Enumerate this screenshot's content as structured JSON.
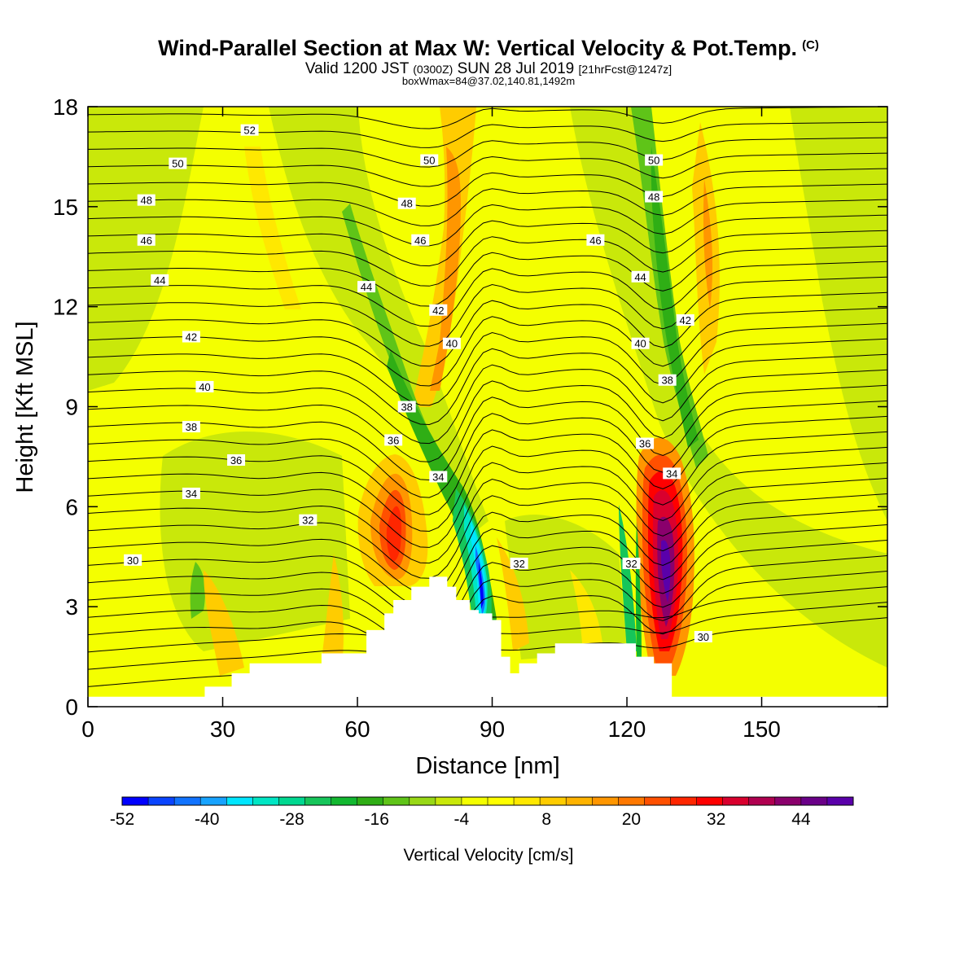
{
  "header": {
    "title": "Wind-Parallel Section at Max W: Vertical Velocity & Pot.Temp.",
    "title_mark": "(C)",
    "subtitle_a": "Valid 1200 JST",
    "subtitle_b": "(0300Z)",
    "subtitle_c": "SUN 28 Jul 2019",
    "subtitle_d": "[21hrFcst@1247z]",
    "subline": "boxWmax=84@37.02,140.81,1492m"
  },
  "chart_data": {
    "type": "contour",
    "xlabel": "Distance [nm]",
    "ylabel": "Height [Kft MSL]",
    "xlim": [
      0,
      178
    ],
    "ylim": [
      0,
      18
    ],
    "x_ticks": [
      0,
      30,
      60,
      90,
      120,
      150
    ],
    "y_ticks": [
      0,
      3,
      6,
      9,
      12,
      15,
      18
    ],
    "terrain": [
      [
        0,
        0.3
      ],
      [
        20,
        0.3
      ],
      [
        26,
        0.6
      ],
      [
        32,
        1
      ],
      [
        36,
        1.3
      ],
      [
        50,
        1.3
      ],
      [
        52,
        1.6
      ],
      [
        58,
        1.6
      ],
      [
        62,
        2.3
      ],
      [
        66,
        2.8
      ],
      [
        68,
        3.2
      ],
      [
        72,
        3.6
      ],
      [
        76,
        3.9
      ],
      [
        80,
        3.6
      ],
      [
        82,
        3.2
      ],
      [
        85,
        2.9
      ],
      [
        87,
        2.8
      ],
      [
        90,
        2.6
      ],
      [
        92,
        1.5
      ],
      [
        94,
        1
      ],
      [
        96,
        1.3
      ],
      [
        100,
        1.6
      ],
      [
        104,
        1.9
      ],
      [
        118,
        1.9
      ],
      [
        122,
        1.5
      ],
      [
        126,
        1.3
      ],
      [
        130,
        0.3
      ],
      [
        134,
        0.3
      ],
      [
        178,
        0.3
      ]
    ],
    "theta_line_labels": [
      {
        "x": 36,
        "y": 17.3,
        "text": "52"
      },
      {
        "x": 20,
        "y": 16.3,
        "text": "50"
      },
      {
        "x": 76,
        "y": 16.4,
        "text": "50"
      },
      {
        "x": 126,
        "y": 16.4,
        "text": "50"
      },
      {
        "x": 13,
        "y": 15.2,
        "text": "48"
      },
      {
        "x": 71,
        "y": 15.1,
        "text": "48"
      },
      {
        "x": 126,
        "y": 15.3,
        "text": "48"
      },
      {
        "x": 13,
        "y": 14.0,
        "text": "46"
      },
      {
        "x": 74,
        "y": 14.0,
        "text": "46"
      },
      {
        "x": 113,
        "y": 14.0,
        "text": "46"
      },
      {
        "x": 16,
        "y": 12.8,
        "text": "44"
      },
      {
        "x": 62,
        "y": 12.6,
        "text": "44"
      },
      {
        "x": 123,
        "y": 12.9,
        "text": "44"
      },
      {
        "x": 78,
        "y": 11.9,
        "text": "42"
      },
      {
        "x": 133,
        "y": 11.6,
        "text": "42"
      },
      {
        "x": 23,
        "y": 11.1,
        "text": "42"
      },
      {
        "x": 81,
        "y": 10.9,
        "text": "40"
      },
      {
        "x": 123,
        "y": 10.9,
        "text": "40"
      },
      {
        "x": 26,
        "y": 9.6,
        "text": "40"
      },
      {
        "x": 129,
        "y": 9.8,
        "text": "38"
      },
      {
        "x": 71,
        "y": 9.0,
        "text": "38"
      },
      {
        "x": 23,
        "y": 8.4,
        "text": "38"
      },
      {
        "x": 68,
        "y": 8.0,
        "text": "36"
      },
      {
        "x": 124,
        "y": 7.9,
        "text": "36"
      },
      {
        "x": 33,
        "y": 7.4,
        "text": "36"
      },
      {
        "x": 78,
        "y": 6.9,
        "text": "34"
      },
      {
        "x": 130,
        "y": 7.0,
        "text": "34"
      },
      {
        "x": 23,
        "y": 6.4,
        "text": "34"
      },
      {
        "x": 49,
        "y": 5.6,
        "text": "32"
      },
      {
        "x": 96,
        "y": 4.3,
        "text": "32"
      },
      {
        "x": 121,
        "y": 4.3,
        "text": "32"
      },
      {
        "x": 10,
        "y": 4.4,
        "text": "30"
      },
      {
        "x": 137,
        "y": 2.1,
        "text": "30"
      }
    ],
    "colorbar": {
      "label": "Vertical Velocity [cm/s]",
      "tick_labels": [
        "-52",
        "-40",
        "-28",
        "-16",
        "-4",
        "8",
        "20",
        "32",
        "44"
      ],
      "colors": [
        "#0000ff",
        "#0a44ff",
        "#1173ff",
        "#17a3ff",
        "#00e6ff",
        "#00e6c4",
        "#00d890",
        "#16c55a",
        "#12b830",
        "#2fae15",
        "#5fc418",
        "#98d816",
        "#c9e80a",
        "#f4ff00",
        "#ffff00",
        "#ffe800",
        "#ffcc00",
        "#ffb300",
        "#ff9600",
        "#ff7800",
        "#ff5000",
        "#ff2600",
        "#ff0000",
        "#d9002e",
        "#b00050",
        "#8a006c",
        "#6a0088",
        "#5a00aa"
      ]
    }
  }
}
